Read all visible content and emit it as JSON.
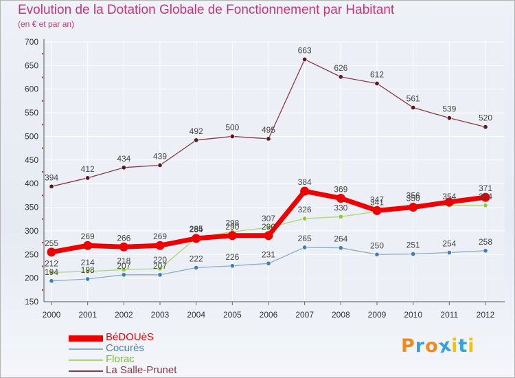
{
  "chart_data": {
    "type": "line",
    "title": "Evolution de la Dotation Globale de Fonctionnement par Habitant",
    "subtitle": "(en € et par an)",
    "xlabel": "",
    "ylabel": "",
    "x": [
      "2000",
      "2001",
      "2002",
      "2003",
      "2004",
      "2005",
      "2006",
      "2007",
      "2008",
      "2009",
      "2010",
      "2011",
      "2012"
    ],
    "ylim": [
      150,
      700
    ],
    "yticks": [
      "150",
      "200",
      "250",
      "300",
      "350",
      "400",
      "450",
      "500",
      "550",
      "600",
      "650",
      "700"
    ],
    "grid": true,
    "legend_position": "bottom-left",
    "series": [
      {
        "name": "BéDOUèS",
        "color": "#ee0000",
        "marker": "#ee0000",
        "width": 7,
        "values": [
          255,
          269,
          266,
          269,
          284,
          290,
          290,
          384,
          369,
          343,
          350,
          361,
          371
        ],
        "labels": [
          "255",
          "269",
          "266",
          "269",
          "284",
          "290",
          "",
          "384",
          "369",
          "",
          "",
          "",
          "371"
        ]
      },
      {
        "name": "Cocurès",
        "color": "#88aacc",
        "marker": "#3d7fc0",
        "width": 1.3,
        "values": [
          194,
          198,
          207,
          207,
          222,
          226,
          231,
          265,
          264,
          250,
          251,
          254,
          258
        ],
        "labels": [
          "194",
          "198",
          "207",
          "207",
          "222",
          "226",
          "231",
          "265",
          "264",
          "250",
          "251",
          "254",
          "258"
        ]
      },
      {
        "name": "Florac",
        "color": "#a8d870",
        "marker": "#8ccc3c",
        "width": 1.3,
        "values": [
          212,
          214,
          218,
          220,
          285,
          298,
          307,
          326,
          330,
          341,
          356,
          354,
          354
        ],
        "labels": [
          "212",
          "214",
          "218",
          "220",
          "285",
          "298",
          "307",
          "326",
          "330",
          "341",
          "356",
          "354",
          "354"
        ]
      },
      {
        "name": "La Salle-Prunet",
        "color": "#8a3a40",
        "marker": "#5a1a20",
        "width": 1.3,
        "values": [
          394,
          412,
          434,
          439,
          492,
          500,
          495,
          663,
          626,
          612,
          561,
          539,
          520
        ],
        "labels": [
          "394",
          "412",
          "434",
          "439",
          "492",
          "500",
          "495",
          "663",
          "626",
          "612",
          "561",
          "539",
          "520"
        ]
      }
    ],
    "extra_labels": [
      "290",
      "347",
      "350"
    ]
  },
  "logo": {
    "text": "Proxiti",
    "letters": [
      "P",
      "r",
      "o",
      "x",
      "i",
      "t",
      "i"
    ],
    "colors": [
      "#f08a1c",
      "#3aa0d8",
      "#f08a1c",
      "#3aa0d8",
      "#f5c400",
      "#3aa0d8",
      "#f5c400"
    ]
  }
}
